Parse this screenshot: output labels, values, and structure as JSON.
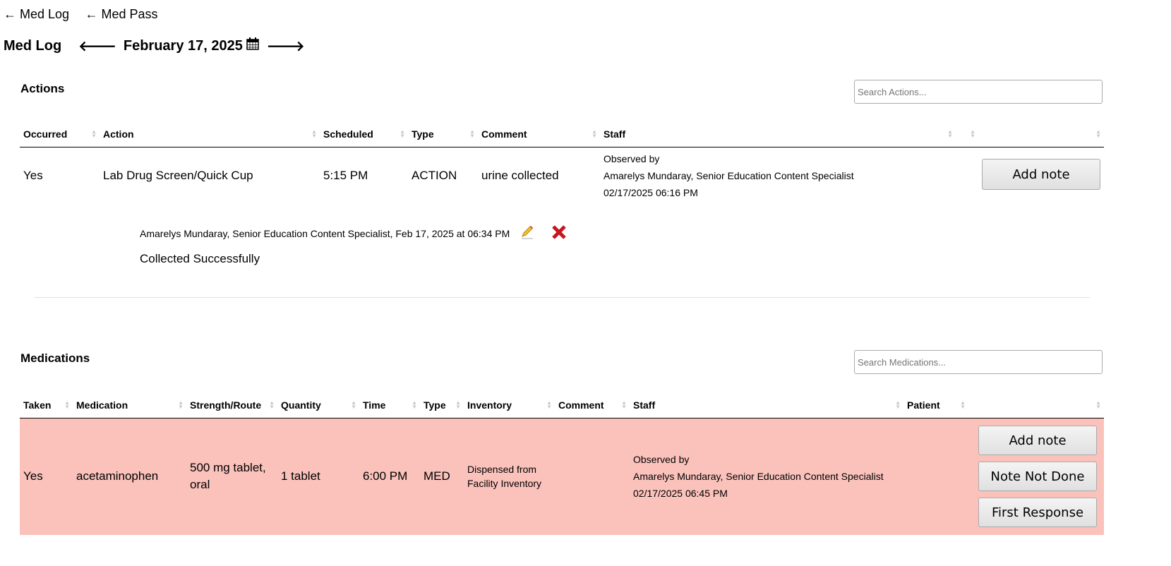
{
  "nav": {
    "links": [
      "← Med Log",
      "← Med Pass"
    ]
  },
  "header": {
    "title": "Med Log",
    "date": "February 17, 2025"
  },
  "actions": {
    "title": "Actions",
    "search_placeholder": "Search Actions...",
    "columns": [
      "Occurred",
      "Action",
      "Scheduled",
      "Type",
      "Comment",
      "Staff",
      "",
      ""
    ],
    "rows": [
      {
        "occurred": "Yes",
        "action": "Lab Drug Screen/Quick Cup",
        "scheduled": "5:15 PM",
        "type": "ACTION",
        "comment": "urine collected",
        "staff": [
          "Observed by",
          "Amarelys Mundaray, Senior Education Content Specialist",
          "02/17/2025 06:16 PM"
        ],
        "button": "Add note"
      }
    ],
    "note": {
      "meta": "Amarelys Mundaray, Senior Education Content Specialist, Feb 17, 2025 at 06:34 PM",
      "text": "Collected Successfully"
    }
  },
  "medications": {
    "title": "Medications",
    "search_placeholder": "Search Medications...",
    "columns": [
      "Taken",
      "Medication",
      "Strength/Route",
      "Quantity",
      "Time",
      "Type",
      "Inventory",
      "Comment",
      "Staff",
      "Patient",
      ""
    ],
    "rows": [
      {
        "taken": "Yes",
        "medication": "acetaminophen",
        "strength": "500 mg tablet, oral",
        "quantity": "1 tablet",
        "time": "6:00 PM",
        "type": "MED",
        "inventory": "Dispensed from Facility Inventory",
        "comment": "",
        "staff": [
          "Observed by",
          "Amarelys Mundaray, Senior Education Content Specialist",
          "02/17/2025 06:45 PM"
        ],
        "patient": "",
        "buttons": [
          "Add note",
          "Note Not Done",
          "First Response"
        ],
        "row_color": "#fac2bb"
      }
    ]
  }
}
